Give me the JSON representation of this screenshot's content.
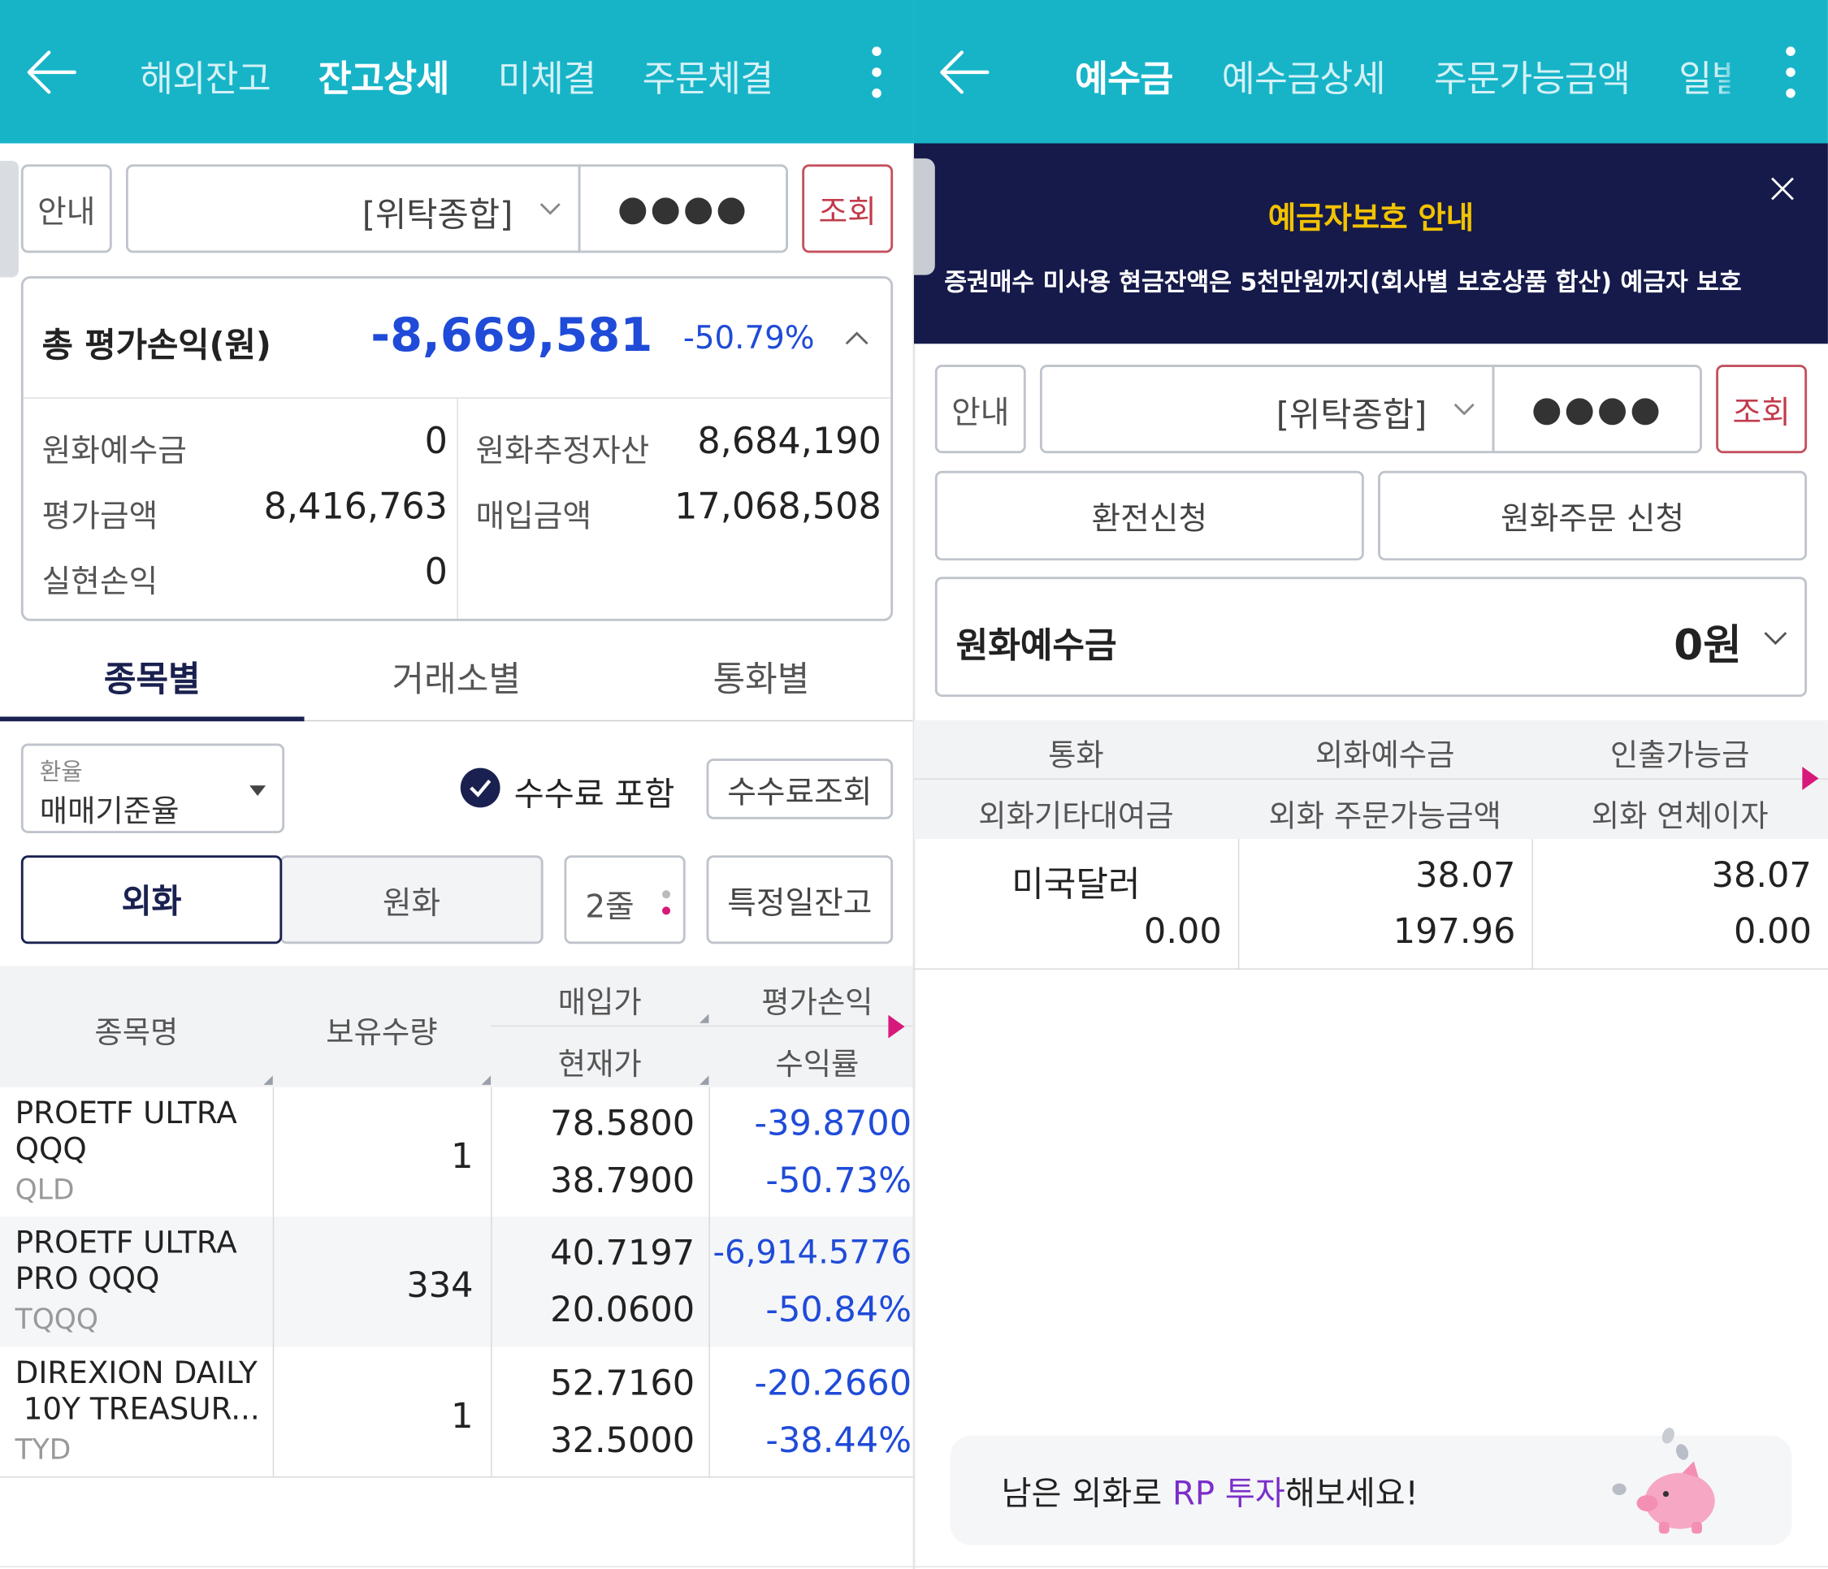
{
  "left": {
    "tabs": [
      "해외잔고",
      "잔고상세",
      "미체결",
      "주문체결"
    ],
    "active_tab": 1,
    "info_button": "안내",
    "account_type": "[위탁종합]",
    "password_mask": "●●●●",
    "query_button": "조회",
    "summary": {
      "label": "총 평가손익(원)",
      "value": "-8,669,581",
      "percent": "-50.79%",
      "items": [
        {
          "label": "원화예수금",
          "value": "0"
        },
        {
          "label": "원화추정자산",
          "value": "8,684,190"
        },
        {
          "label": "평가금액",
          "value": "8,416,763"
        },
        {
          "label": "매입금액",
          "value": "17,068,508"
        },
        {
          "label": "실현손익",
          "value": "0"
        }
      ]
    },
    "view_tabs": [
      "종목별",
      "거래소별",
      "통화별"
    ],
    "exchange_rate": {
      "label": "환율",
      "value": "매매기준율"
    },
    "fee_include": "수수료 포함",
    "fee_query": "수수료조회",
    "currency_toggle": [
      "외화",
      "원화"
    ],
    "row_mode": "2줄",
    "specific_date": "특정일잔고",
    "table": {
      "headers": {
        "name": "종목명",
        "qty": "보유수량",
        "buy_price": "매입가",
        "current_price": "현재가",
        "pnl": "평가손익",
        "return": "수익률"
      },
      "rows": [
        {
          "name1": "PROETF ULTRA",
          "name2": "QQQ",
          "ticker": "QLD",
          "qty": "1",
          "buy": "78.5800",
          "cur": "38.7900",
          "pnl": "-39.8700",
          "ret": "-50.73%"
        },
        {
          "name1": "PROETF ULTRA",
          "name2": "PRO QQQ",
          "ticker": "TQQQ",
          "qty": "334",
          "buy": "40.7197",
          "cur": "20.0600",
          "pnl": "-6,914.5776",
          "ret": "-50.84%"
        },
        {
          "name1": "DIREXION DAILY",
          "name2": "10Y TREASUR...",
          "ticker": "TYD",
          "qty": "1",
          "buy": "52.7160",
          "cur": "32.5000",
          "pnl": "-20.2660",
          "ret": "-38.44%"
        }
      ]
    }
  },
  "right": {
    "tabs": [
      "예수금",
      "예수금상세",
      "주문가능금액",
      "일별"
    ],
    "active_tab": 0,
    "banner": {
      "title": "예금자보호 안내",
      "text": "증권매수 미사용 현금잔액은 5천만원까지(회사별 보호상품 합산) 예금자 보호"
    },
    "info_button": "안내",
    "account_type": "[위탁종합]",
    "password_mask": "●●●●",
    "query_button": "조회",
    "exchange_button": "환전신청",
    "krw_order_button": "원화주문 신청",
    "krw_deposit": {
      "label": "원화예수금",
      "value": "0원"
    },
    "table": {
      "headers": [
        "통화",
        "외화예수금",
        "인출가능금",
        "외화기타대여금",
        "외화 주문가능금액",
        "외화 연체이자"
      ],
      "row": {
        "currency": "미국달러",
        "deposit": "38.07",
        "withdrawable": "38.07",
        "other_loan": "0.00",
        "orderable": "197.96",
        "overdue_interest": "0.00"
      }
    },
    "promo": {
      "prefix": "남은 외화로 ",
      "highlight": "RP 투자",
      "suffix": "해보세요!"
    },
    "colors": {
      "accent": "#17b4c8",
      "navy": "#151a4a",
      "gold": "#f2c200",
      "negative": "#1f4bd8",
      "promo": "#7b2fc9"
    }
  }
}
